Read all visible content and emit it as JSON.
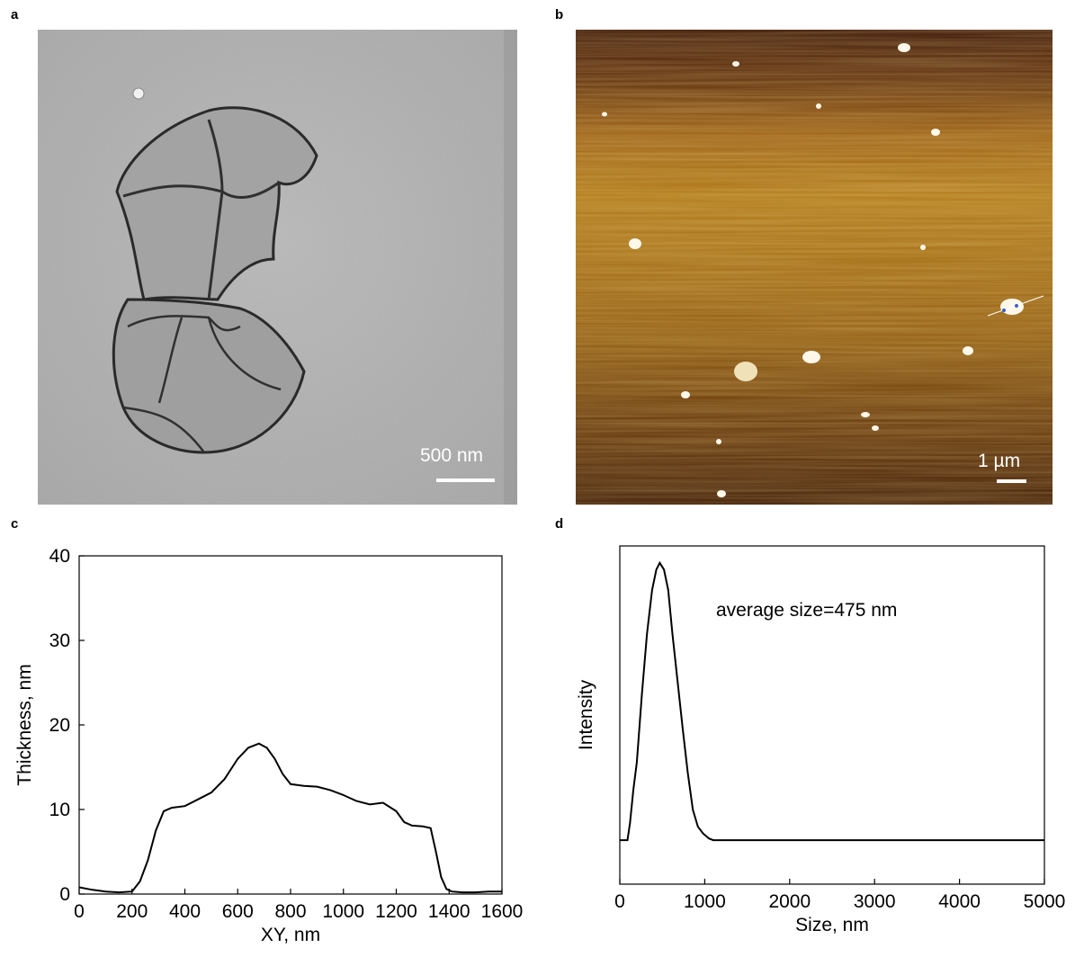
{
  "panels": {
    "a": {
      "letter": "a",
      "scale_label": "500 nm"
    },
    "b": {
      "letter": "b",
      "scale_label": "1 µm"
    },
    "c": {
      "letter": "c"
    },
    "d": {
      "letter": "d"
    }
  },
  "chart_data": [
    {
      "panel": "c",
      "type": "line",
      "title": "",
      "xlabel": "XY, nm",
      "ylabel": "Thickness, nm",
      "xlim": [
        0,
        1600
      ],
      "ylim": [
        0,
        40
      ],
      "xticks": [
        "0",
        "200",
        "400",
        "600",
        "800",
        "1000",
        "1200",
        "1400",
        "1600"
      ],
      "yticks": [
        "0",
        "10",
        "20",
        "30",
        "40"
      ],
      "grid": false,
      "series": [
        {
          "x": [
            0,
            50,
            100,
            150,
            200,
            230,
            260,
            290,
            320,
            350,
            400,
            450,
            500,
            550,
            600,
            640,
            680,
            710,
            740,
            770,
            800,
            850,
            900,
            950,
            1000,
            1050,
            1100,
            1150,
            1200,
            1230,
            1260,
            1300,
            1330,
            1350,
            1370,
            1390,
            1410,
            1450,
            1500,
            1550,
            1600
          ],
          "values": [
            0.8,
            0.5,
            0.3,
            0.2,
            0.3,
            1.5,
            4.0,
            7.5,
            9.8,
            10.2,
            10.4,
            11.2,
            12.0,
            13.6,
            16.0,
            17.3,
            17.8,
            17.3,
            16.0,
            14.2,
            13.0,
            12.8,
            12.7,
            12.3,
            11.7,
            11.0,
            10.6,
            10.8,
            9.8,
            8.5,
            8.1,
            8.0,
            7.8,
            5.0,
            2.0,
            0.6,
            0.3,
            0.2,
            0.2,
            0.3,
            0.3
          ]
        }
      ]
    },
    {
      "panel": "d",
      "type": "line",
      "title": "",
      "annotation": "average size=475 nm",
      "xlabel": "Size, nm",
      "ylabel": "Intensity",
      "xlim": [
        0,
        5000
      ],
      "ylim": [
        0,
        100
      ],
      "xticks": [
        "0",
        "1000",
        "2000",
        "3000",
        "4000",
        "5000"
      ],
      "yticks": [],
      "grid": false,
      "series": [
        {
          "x": [
            0,
            90,
            120,
            160,
            200,
            260,
            320,
            380,
            430,
            470,
            520,
            570,
            620,
            680,
            740,
            800,
            860,
            920,
            980,
            1050,
            1100,
            2000,
            3000,
            4000,
            5000
          ],
          "values": [
            13,
            13,
            18,
            28,
            36,
            56,
            74,
            87,
            93,
            95,
            93,
            87,
            74,
            60,
            46,
            33,
            22,
            17,
            15,
            13.5,
            13,
            13,
            13,
            13,
            13
          ]
        }
      ]
    }
  ]
}
